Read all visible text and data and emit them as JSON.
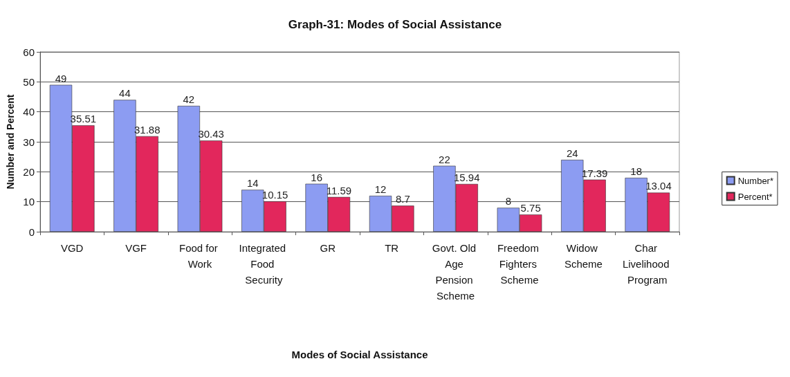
{
  "chart_data": {
    "type": "bar",
    "title": "Graph-31: Modes of Social Assistance",
    "xlabel": "Modes of Social Assistance",
    "ylabel": "Number and Percent",
    "categories": [
      "VGD",
      "VGF",
      "Food for Work",
      "Integrated Food Security",
      "GR",
      "TR",
      "Govt. Old Age Pension Scheme",
      "Freedom Fighters Scheme",
      "Widow Scheme",
      "Char Livelihood Program"
    ],
    "series": [
      {
        "name": "Number*",
        "color": "#8c9cf2",
        "values": [
          49,
          44,
          42,
          14,
          16,
          12,
          22,
          8,
          24,
          18
        ]
      },
      {
        "name": "Percent*",
        "color": "#e2275c",
        "values": [
          35.51,
          31.88,
          30.43,
          10.15,
          11.59,
          8.7,
          15.94,
          5.75,
          17.39,
          13.04
        ]
      }
    ],
    "ylim": [
      0,
      60
    ],
    "yticks": [
      0,
      10,
      20,
      30,
      40,
      50,
      60
    ],
    "grid": "y",
    "legend": "right",
    "data_labels": true
  }
}
